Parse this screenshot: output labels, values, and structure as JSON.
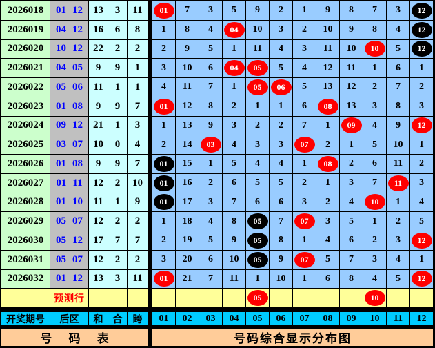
{
  "colors": {
    "issue_bg": "#CCFFCC",
    "back_area_bg": "#C0C0C0",
    "stat_bg": "#CCFFFF",
    "grid_bg": "#99CCFF",
    "prediction_bg": "#FFFF99",
    "header_bg": "#00CCFF",
    "footer_bg": "#FFCC99",
    "hit_circle": "#FF0000",
    "streak_circle": "#000000",
    "back_text": "#0000FF",
    "prediction_text": "#FF0000"
  },
  "chart_data": {
    "type": "table",
    "title": "号码综合显示分布图",
    "left_title": "号 码 表",
    "prediction_label": "预测行",
    "left_headers": [
      "开奖期号",
      "后区",
      "和",
      "合",
      "跨"
    ],
    "number_headers": [
      "01",
      "02",
      "03",
      "04",
      "05",
      "06",
      "07",
      "08",
      "09",
      "10",
      "11",
      "12"
    ],
    "rows": [
      {
        "issue": "2026018",
        "back": [
          "01",
          "12"
        ],
        "sum": "13",
        "he": "3",
        "kua": "11",
        "cells": [
          [
            "01",
            "r"
          ],
          [
            "7",
            ""
          ],
          [
            "3",
            ""
          ],
          [
            "5",
            ""
          ],
          [
            "9",
            ""
          ],
          [
            "2",
            ""
          ],
          [
            "1",
            ""
          ],
          [
            "9",
            ""
          ],
          [
            "8",
            ""
          ],
          [
            "7",
            ""
          ],
          [
            "3",
            ""
          ],
          [
            "12",
            "b"
          ]
        ]
      },
      {
        "issue": "2026019",
        "back": [
          "04",
          "12"
        ],
        "sum": "16",
        "he": "6",
        "kua": "8",
        "cells": [
          [
            "1",
            ""
          ],
          [
            "8",
            ""
          ],
          [
            "4",
            ""
          ],
          [
            "04",
            "r"
          ],
          [
            "10",
            ""
          ],
          [
            "3",
            ""
          ],
          [
            "2",
            ""
          ],
          [
            "10",
            ""
          ],
          [
            "9",
            ""
          ],
          [
            "8",
            ""
          ],
          [
            "4",
            ""
          ],
          [
            "12",
            "b"
          ]
        ]
      },
      {
        "issue": "2026020",
        "back": [
          "10",
          "12"
        ],
        "sum": "22",
        "he": "2",
        "kua": "2",
        "cells": [
          [
            "2",
            ""
          ],
          [
            "9",
            ""
          ],
          [
            "5",
            ""
          ],
          [
            "1",
            ""
          ],
          [
            "11",
            ""
          ],
          [
            "4",
            ""
          ],
          [
            "3",
            ""
          ],
          [
            "11",
            ""
          ],
          [
            "10",
            ""
          ],
          [
            "10",
            "r"
          ],
          [
            "5",
            ""
          ],
          [
            "12",
            "b"
          ]
        ]
      },
      {
        "issue": "2026021",
        "back": [
          "04",
          "05"
        ],
        "sum": "9",
        "he": "9",
        "kua": "1",
        "cells": [
          [
            "3",
            ""
          ],
          [
            "10",
            ""
          ],
          [
            "6",
            ""
          ],
          [
            "04",
            "r"
          ],
          [
            "05",
            "r"
          ],
          [
            "5",
            ""
          ],
          [
            "4",
            ""
          ],
          [
            "12",
            ""
          ],
          [
            "11",
            ""
          ],
          [
            "1",
            ""
          ],
          [
            "6",
            ""
          ],
          [
            "1",
            ""
          ]
        ]
      },
      {
        "issue": "2026022",
        "back": [
          "05",
          "06"
        ],
        "sum": "11",
        "he": "1",
        "kua": "1",
        "cells": [
          [
            "4",
            ""
          ],
          [
            "11",
            ""
          ],
          [
            "7",
            ""
          ],
          [
            "1",
            ""
          ],
          [
            "05",
            "r"
          ],
          [
            "06",
            "r"
          ],
          [
            "5",
            ""
          ],
          [
            "13",
            ""
          ],
          [
            "12",
            ""
          ],
          [
            "2",
            ""
          ],
          [
            "7",
            ""
          ],
          [
            "2",
            ""
          ]
        ]
      },
      {
        "issue": "2026023",
        "back": [
          "01",
          "08"
        ],
        "sum": "9",
        "he": "9",
        "kua": "7",
        "cells": [
          [
            "01",
            "r"
          ],
          [
            "12",
            ""
          ],
          [
            "8",
            ""
          ],
          [
            "2",
            ""
          ],
          [
            "1",
            ""
          ],
          [
            "1",
            ""
          ],
          [
            "6",
            ""
          ],
          [
            "08",
            "r"
          ],
          [
            "13",
            ""
          ],
          [
            "3",
            ""
          ],
          [
            "8",
            ""
          ],
          [
            "3",
            ""
          ]
        ]
      },
      {
        "issue": "2026024",
        "back": [
          "09",
          "12"
        ],
        "sum": "21",
        "he": "1",
        "kua": "3",
        "cells": [
          [
            "1",
            ""
          ],
          [
            "13",
            ""
          ],
          [
            "9",
            ""
          ],
          [
            "3",
            ""
          ],
          [
            "2",
            ""
          ],
          [
            "2",
            ""
          ],
          [
            "7",
            ""
          ],
          [
            "1",
            ""
          ],
          [
            "09",
            "r"
          ],
          [
            "4",
            ""
          ],
          [
            "9",
            ""
          ],
          [
            "12",
            "r"
          ]
        ]
      },
      {
        "issue": "2026025",
        "back": [
          "03",
          "07"
        ],
        "sum": "10",
        "he": "0",
        "kua": "4",
        "cells": [
          [
            "2",
            ""
          ],
          [
            "14",
            ""
          ],
          [
            "03",
            "r"
          ],
          [
            "4",
            ""
          ],
          [
            "3",
            ""
          ],
          [
            "3",
            ""
          ],
          [
            "07",
            "r"
          ],
          [
            "2",
            ""
          ],
          [
            "1",
            ""
          ],
          [
            "5",
            ""
          ],
          [
            "10",
            ""
          ],
          [
            "1",
            ""
          ]
        ]
      },
      {
        "issue": "2026026",
        "back": [
          "01",
          "08"
        ],
        "sum": "9",
        "he": "9",
        "kua": "7",
        "cells": [
          [
            "01",
            "b"
          ],
          [
            "15",
            ""
          ],
          [
            "1",
            ""
          ],
          [
            "5",
            ""
          ],
          [
            "4",
            ""
          ],
          [
            "4",
            ""
          ],
          [
            "1",
            ""
          ],
          [
            "08",
            "r"
          ],
          [
            "2",
            ""
          ],
          [
            "6",
            ""
          ],
          [
            "11",
            ""
          ],
          [
            "2",
            ""
          ]
        ]
      },
      {
        "issue": "2026027",
        "back": [
          "01",
          "11"
        ],
        "sum": "12",
        "he": "2",
        "kua": "10",
        "cells": [
          [
            "01",
            "b"
          ],
          [
            "16",
            ""
          ],
          [
            "2",
            ""
          ],
          [
            "6",
            ""
          ],
          [
            "5",
            ""
          ],
          [
            "5",
            ""
          ],
          [
            "2",
            ""
          ],
          [
            "1",
            ""
          ],
          [
            "3",
            ""
          ],
          [
            "7",
            ""
          ],
          [
            "11",
            "r"
          ],
          [
            "3",
            ""
          ]
        ]
      },
      {
        "issue": "2026028",
        "back": [
          "01",
          "10"
        ],
        "sum": "11",
        "he": "1",
        "kua": "9",
        "cells": [
          [
            "01",
            "b"
          ],
          [
            "17",
            ""
          ],
          [
            "3",
            ""
          ],
          [
            "7",
            ""
          ],
          [
            "6",
            ""
          ],
          [
            "6",
            ""
          ],
          [
            "3",
            ""
          ],
          [
            "2",
            ""
          ],
          [
            "4",
            ""
          ],
          [
            "10",
            "r"
          ],
          [
            "1",
            ""
          ],
          [
            "4",
            ""
          ]
        ]
      },
      {
        "issue": "2026029",
        "back": [
          "05",
          "07"
        ],
        "sum": "12",
        "he": "2",
        "kua": "2",
        "cells": [
          [
            "1",
            ""
          ],
          [
            "18",
            ""
          ],
          [
            "4",
            ""
          ],
          [
            "8",
            ""
          ],
          [
            "05",
            "b"
          ],
          [
            "7",
            ""
          ],
          [
            "07",
            "r"
          ],
          [
            "3",
            ""
          ],
          [
            "5",
            ""
          ],
          [
            "1",
            ""
          ],
          [
            "2",
            ""
          ],
          [
            "5",
            ""
          ]
        ]
      },
      {
        "issue": "2026030",
        "back": [
          "05",
          "12"
        ],
        "sum": "17",
        "he": "7",
        "kua": "7",
        "cells": [
          [
            "2",
            ""
          ],
          [
            "19",
            ""
          ],
          [
            "5",
            ""
          ],
          [
            "9",
            ""
          ],
          [
            "05",
            "b"
          ],
          [
            "8",
            ""
          ],
          [
            "1",
            ""
          ],
          [
            "4",
            ""
          ],
          [
            "6",
            ""
          ],
          [
            "2",
            ""
          ],
          [
            "3",
            ""
          ],
          [
            "12",
            "r"
          ]
        ]
      },
      {
        "issue": "2026031",
        "back": [
          "05",
          "07"
        ],
        "sum": "12",
        "he": "2",
        "kua": "2",
        "cells": [
          [
            "3",
            ""
          ],
          [
            "20",
            ""
          ],
          [
            "6",
            ""
          ],
          [
            "10",
            ""
          ],
          [
            "05",
            "b"
          ],
          [
            "9",
            ""
          ],
          [
            "07",
            "r"
          ],
          [
            "5",
            ""
          ],
          [
            "7",
            ""
          ],
          [
            "3",
            ""
          ],
          [
            "4",
            ""
          ],
          [
            "1",
            ""
          ]
        ]
      },
      {
        "issue": "2026032",
        "back": [
          "01",
          "12"
        ],
        "sum": "13",
        "he": "3",
        "kua": "11",
        "cells": [
          [
            "01",
            "r"
          ],
          [
            "21",
            ""
          ],
          [
            "7",
            ""
          ],
          [
            "11",
            ""
          ],
          [
            "1",
            ""
          ],
          [
            "10",
            ""
          ],
          [
            "1",
            ""
          ],
          [
            "6",
            ""
          ],
          [
            "8",
            ""
          ],
          [
            "4",
            ""
          ],
          [
            "5",
            ""
          ],
          [
            "12",
            "r"
          ]
        ]
      }
    ],
    "prediction_cells": [
      [
        "",
        ""
      ],
      [
        "",
        ""
      ],
      [
        "",
        ""
      ],
      [
        "",
        ""
      ],
      [
        "05",
        "r"
      ],
      [
        "",
        ""
      ],
      [
        "",
        ""
      ],
      [
        "",
        ""
      ],
      [
        "",
        ""
      ],
      [
        "10",
        "r"
      ],
      [
        "",
        ""
      ],
      [
        "",
        ""
      ]
    ]
  }
}
